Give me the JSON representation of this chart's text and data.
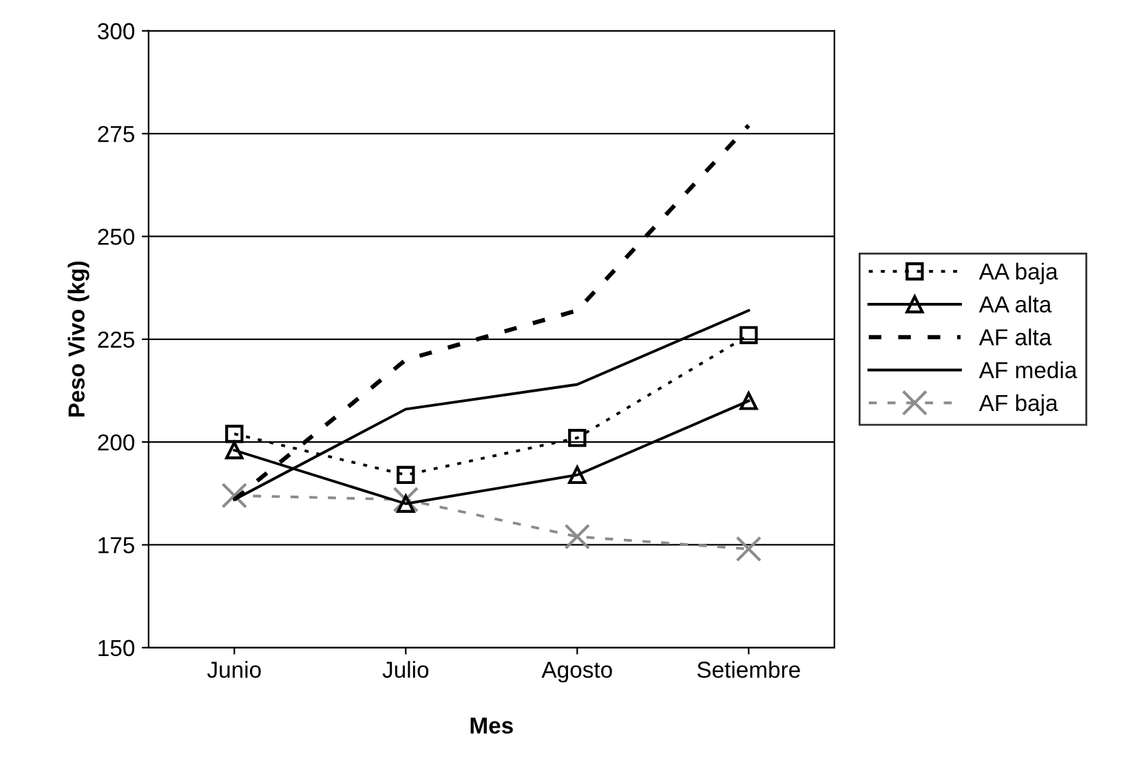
{
  "chart_data": {
    "type": "line",
    "xlabel": "Mes",
    "ylabel": "Peso Vivo (kg)",
    "categories": [
      "Junio",
      "Julio",
      "Agosto",
      "Setiembre"
    ],
    "ylim": [
      150,
      300
    ],
    "yticks": [
      150,
      175,
      200,
      225,
      250,
      275,
      300
    ],
    "grid": "y",
    "legend": "right",
    "series": [
      {
        "name": "AA baja",
        "color": "#000000",
        "line_style": "dotted",
        "marker": "square",
        "values": [
          202,
          192,
          201,
          226
        ]
      },
      {
        "name": "AA alta",
        "color": "#000000",
        "line_style": "solid",
        "marker": "triangle",
        "values": [
          198,
          185,
          192,
          210
        ]
      },
      {
        "name": "AF alta",
        "color": "#000000",
        "line_style": "dashed",
        "marker": "none",
        "values": [
          186,
          220,
          232,
          277
        ]
      },
      {
        "name": "AF media",
        "color": "#000000",
        "line_style": "solid",
        "marker": "none",
        "values": [
          186,
          208,
          214,
          232
        ]
      },
      {
        "name": "AF baja",
        "color": "#8c8c8c",
        "line_style": "dashed",
        "marker": "cross",
        "values": [
          187,
          186,
          177,
          174
        ]
      }
    ]
  }
}
